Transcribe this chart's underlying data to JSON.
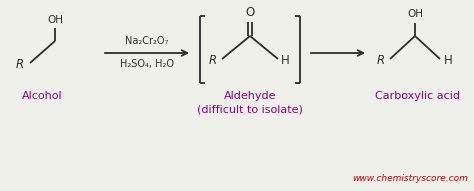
{
  "bg_color": "#f0f0eb",
  "line_color": "#2d2d2d",
  "label_color": "#8b008b",
  "website_color": "#cc0000",
  "website_text": "www.chemistryscore.com",
  "label_alcohol": "Alcohol",
  "label_aldehyde": "Aldehyde\n(difficult to isolate)",
  "label_carboxylic": "Carboxylic acid",
  "reagent_line1": "Na₂Cr₂O₇",
  "reagent_line2": "H₂SO₄, H₂O",
  "figsize": [
    4.74,
    1.91
  ],
  "dpi": 100
}
